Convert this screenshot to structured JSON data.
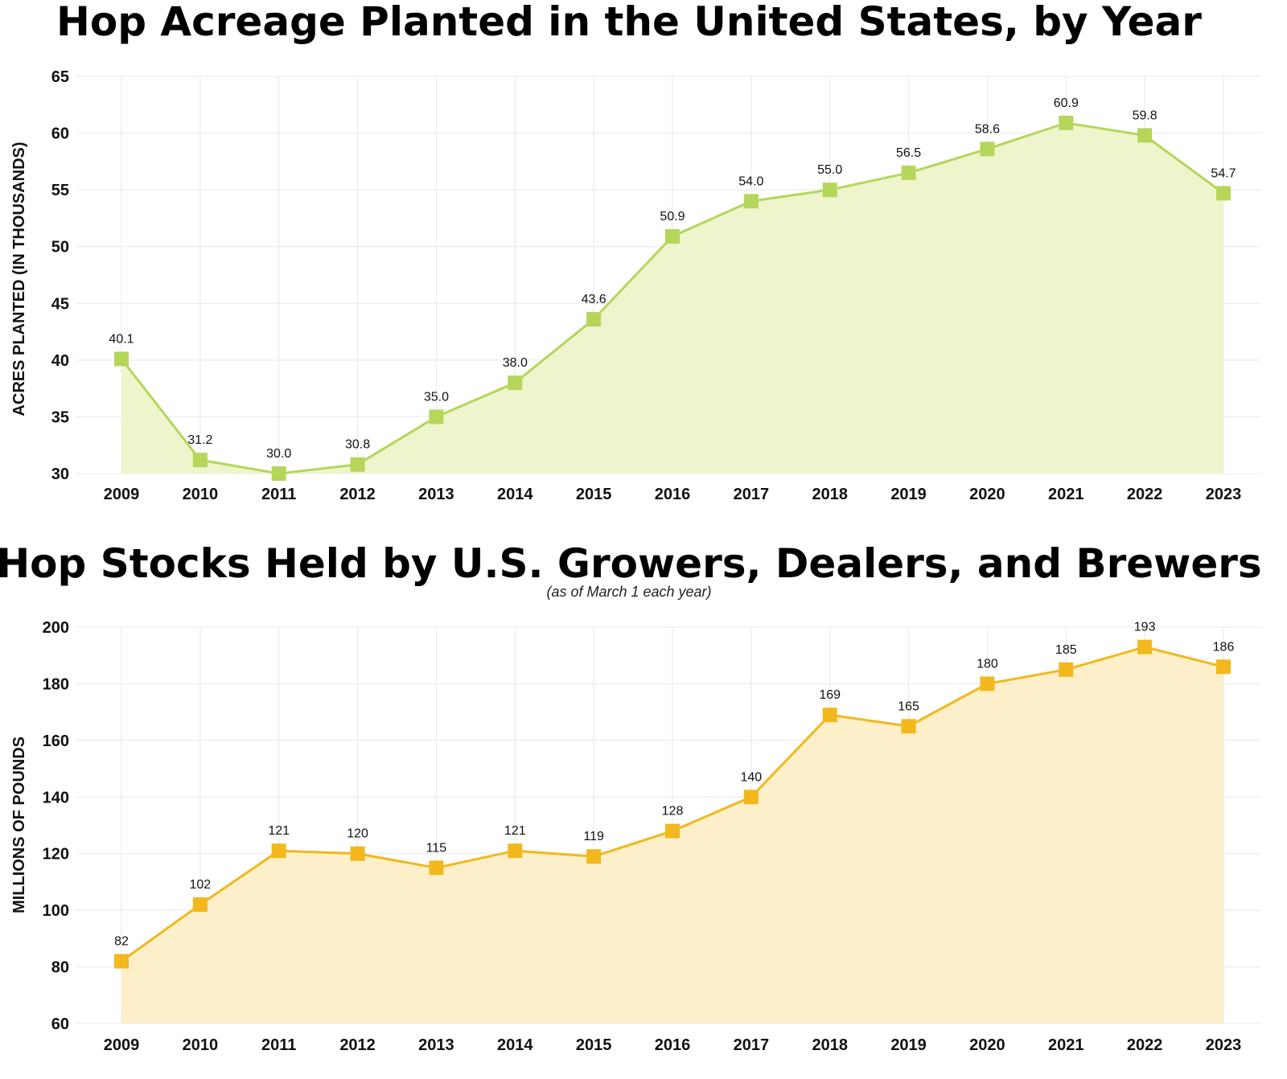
{
  "chart_data": [
    {
      "type": "area",
      "title": "Hop Acreage Planted in the United States, by Year",
      "subtitle": "",
      "xlabel": "",
      "ylabel": "ACRES PLANTED (IN THOUSANDS)",
      "categories": [
        "2009",
        "2010",
        "2011",
        "2012",
        "2013",
        "2014",
        "2015",
        "2016",
        "2017",
        "2018",
        "2019",
        "2020",
        "2021",
        "2022",
        "2023"
      ],
      "values": [
        40.1,
        31.2,
        30.0,
        30.8,
        35.0,
        38.0,
        43.6,
        50.9,
        54.0,
        55.0,
        56.5,
        58.6,
        60.9,
        59.8,
        54.7
      ],
      "data_labels": [
        "40.1",
        "31.2",
        "30.0",
        "30.8",
        "35.0",
        "38.0",
        "43.6",
        "50.9",
        "54.0",
        "55.0",
        "56.5",
        "58.6",
        "60.9",
        "59.8",
        "54.7"
      ],
      "ylim": [
        30,
        65
      ],
      "yticks": [
        "30",
        "35",
        "40",
        "45",
        "50",
        "55",
        "60",
        "65"
      ],
      "grid": true,
      "marker": "square",
      "line_color": "#b5d65a",
      "fill_color": "#eef5cc"
    },
    {
      "type": "area",
      "title": "Hop Stocks Held by U.S. Growers, Dealers, and Brewers",
      "subtitle": "(as of March 1 each year)",
      "xlabel": "",
      "ylabel": "MILLIONS OF POUNDS",
      "categories": [
        "2009",
        "2010",
        "2011",
        "2012",
        "2013",
        "2014",
        "2015",
        "2016",
        "2017",
        "2018",
        "2019",
        "2020",
        "2021",
        "2022",
        "2023"
      ],
      "values": [
        82,
        102,
        121,
        120,
        115,
        121,
        119,
        128,
        140,
        169,
        165,
        180,
        185,
        193,
        186
      ],
      "data_labels": [
        "82",
        "102",
        "121",
        "120",
        "115",
        "121",
        "119",
        "128",
        "140",
        "169",
        "165",
        "180",
        "185",
        "193",
        "186"
      ],
      "ylim": [
        60,
        200
      ],
      "yticks": [
        "60",
        "80",
        "100",
        "120",
        "140",
        "160",
        "180",
        "200"
      ],
      "grid": true,
      "marker": "square",
      "line_color": "#f2b81d",
      "fill_color": "#fcefc9"
    }
  ]
}
